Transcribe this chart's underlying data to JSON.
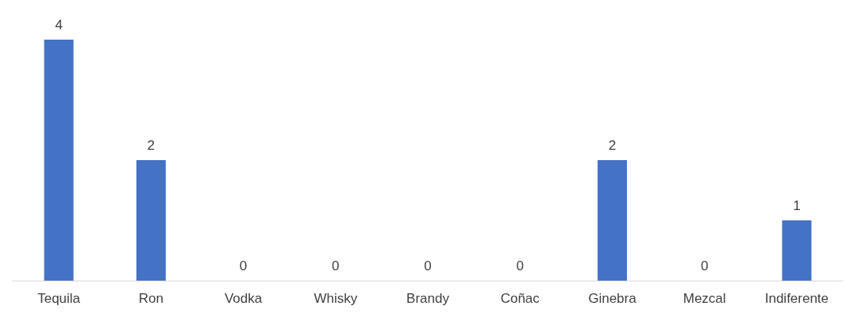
{
  "chart_data": {
    "type": "bar",
    "categories": [
      "Tequila",
      "Ron",
      "Vodka",
      "Whisky",
      "Brandy",
      "Coñac",
      "Ginebra",
      "Mezcal",
      "Indiferente"
    ],
    "values": [
      4,
      2,
      0,
      0,
      0,
      0,
      2,
      0,
      1
    ],
    "color": "#4472c4",
    "data_labels": true
  }
}
